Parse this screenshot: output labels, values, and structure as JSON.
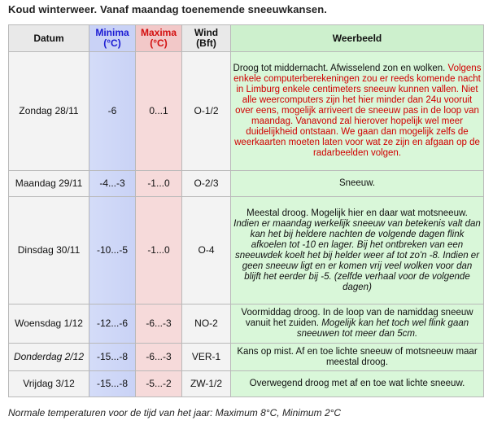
{
  "heading": "Koud winterweer. Vanaf maandag toenemende sneeuwkansen.",
  "headers": {
    "date": "Datum",
    "min_line1": "Minima",
    "min_line2": "(°C)",
    "max_line1": "Maxima",
    "max_line2": "(°C)",
    "wind_line1": "Wind",
    "wind_line2": "(Bft)",
    "desc": "Weerbeeld"
  },
  "rows": [
    {
      "date": "Zondag 28/11",
      "min": "-6",
      "max": "0...1",
      "wind": "O-1/2",
      "desc_plain": "Droog tot middernacht. Afwisselend zon en wolken.",
      "desc_red": "Volgens enkele computerberekeningen zou er reeds komende nacht in Limburg enkele centimeters sneeuw kunnen vallen. Niet alle weercomputers zijn het hier minder dan 24u vooruit over eens, mogelijk arriveert de sneeuw pas in de loop van maandag. Vanavond zal hierover hopelijk wel meer duidelijkheid ontstaan. We gaan dan mogelijk zelfs de weerkaarten moeten laten voor wat ze zijn en afgaan op de radarbeelden volgen."
    },
    {
      "date": "Maandag 29/11",
      "min": "-4...-3",
      "max": "-1...0",
      "wind": "O-2/3",
      "desc_plain": "Sneeuw.",
      "desc_italic": ""
    },
    {
      "date": "Dinsdag 30/11",
      "min": "-10...-5",
      "max": "-1...0",
      "wind": "O-4",
      "desc_plain": "Meestal droog. Mogelijk hier en daar wat motsneeuw.",
      "desc_italic": "Indien er maandag werkelijk sneeuw van betekenis valt dan kan het bij heldere nachten de volgende dagen flink afkoelen tot -10 en lager. Bij het ontbreken van een sneeuwdek koelt het bij helder weer af tot zo'n -8. Indien er geen sneeuw ligt en er komen vrij veel wolken voor dan blijft het eerder bij -5. (zelfde verhaal voor de volgende dagen)"
    },
    {
      "date": "Woensdag 1/12",
      "min": "-12...-6",
      "max": "-6...-3",
      "wind": "NO-2",
      "desc_plain": "Voormiddag droog. In de loop van de namiddag sneeuw vanuit het zuiden.",
      "desc_italic": "Mogelijk kan het toch wel flink gaan sneeuwen tot meer dan 5cm."
    },
    {
      "date": "Donderdag 2/12",
      "min": "-15...-8",
      "max": "-6...-3",
      "wind": "VER-1",
      "desc_plain": "Kans op mist. Af en toe lichte sneeuw of motsneeuw maar meestal droog.",
      "desc_italic": ""
    },
    {
      "date": "Vrijdag 3/12",
      "min": "-15...-8",
      "max": "-5...-2",
      "wind": "ZW-1/2",
      "desc_plain": "Overwegend droog met af en toe wat lichte sneeuw.",
      "desc_italic": ""
    }
  ],
  "footnote": "Normale temperaturen voor de tijd van het jaar: Maximum 8°C, Minimum 2°C"
}
